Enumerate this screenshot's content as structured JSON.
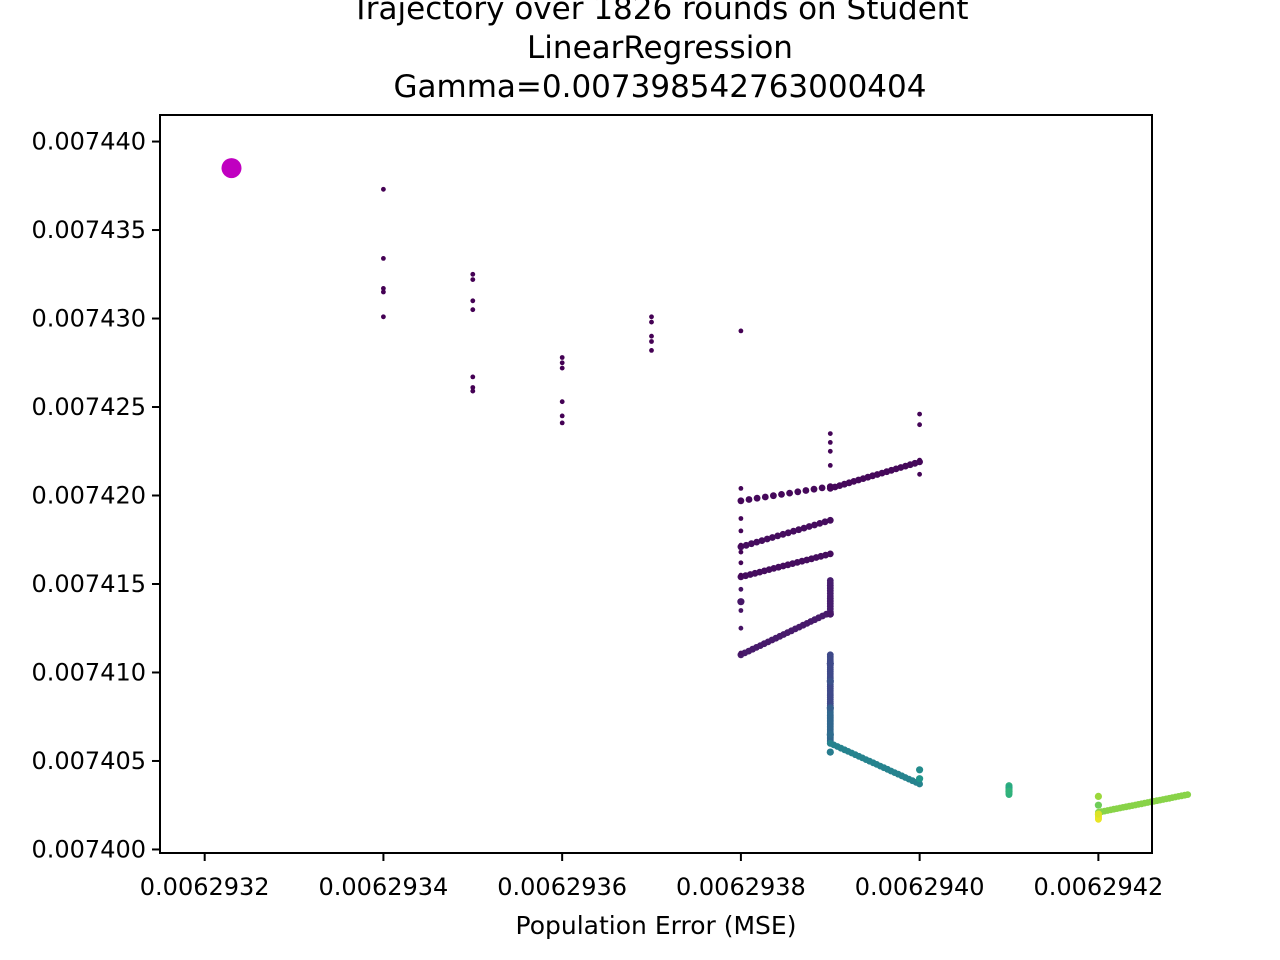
{
  "chart_data": {
    "type": "scatter",
    "title_lines": [
      "Trajectory over 1826 rounds on Student",
      "LinearRegression",
      "Gamma=0.007398542763000404"
    ],
    "xlabel": "Population Error (MSE)",
    "ylabel": "",
    "xlim": [
      0.00629315,
      0.00629426
    ],
    "ylim": [
      0.0073998,
      0.0074415
    ],
    "x_ticks": [
      0.0062932,
      0.0062934,
      0.0062936,
      0.0062938,
      0.006294,
      0.0062942
    ],
    "x_tick_labels": [
      "0.0062932",
      "0.0062934",
      "0.0062936",
      "0.0062938",
      "0.0062940",
      "0.0062942"
    ],
    "y_ticks": [
      0.0074,
      0.007405,
      0.00741,
      0.007415,
      0.00742,
      0.007425,
      0.00743,
      0.007435,
      0.00744
    ],
    "y_tick_labels": [
      "0.007400",
      "0.007405",
      "0.007410",
      "0.007415",
      "0.007420",
      "0.007425",
      "0.007430",
      "0.007435",
      "0.007440"
    ],
    "grid": false,
    "colormap": "viridis",
    "start_point": {
      "x": 0.00629323,
      "y": 0.0074385,
      "color": "#c000c0"
    },
    "points": [
      [
        0.0062934,
        0.0074373,
        0.0
      ],
      [
        0.0062934,
        0.0074334,
        0.0
      ],
      [
        0.0062934,
        0.0074301,
        0.0
      ],
      [
        0.0062934,
        0.0074315,
        0.0
      ],
      [
        0.0062934,
        0.0074317,
        0.0
      ],
      [
        0.0062935,
        0.0074305,
        0.0
      ],
      [
        0.0062935,
        0.0074322,
        0.0
      ],
      [
        0.0062935,
        0.007431,
        0.0
      ],
      [
        0.0062935,
        0.0074325,
        0.0
      ],
      [
        0.0062935,
        0.0074259,
        0.0
      ],
      [
        0.0062935,
        0.0074267,
        0.0
      ],
      [
        0.0062935,
        0.0074261,
        0.0
      ],
      [
        0.0062936,
        0.0074253,
        0.0
      ],
      [
        0.0062936,
        0.0074245,
        0.0
      ],
      [
        0.0062936,
        0.0074272,
        0.0
      ],
      [
        0.0062936,
        0.0074275,
        0.0
      ],
      [
        0.0062936,
        0.0074241,
        0.0
      ],
      [
        0.0062936,
        0.0074278,
        0.0
      ],
      [
        0.0062937,
        0.0074298,
        0.0
      ],
      [
        0.0062937,
        0.0074282,
        0.0
      ],
      [
        0.0062937,
        0.0074301,
        0.0
      ],
      [
        0.0062937,
        0.0074287,
        0.0
      ],
      [
        0.0062937,
        0.007429,
        0.0
      ],
      [
        0.0062938,
        0.0074293,
        0.0
      ],
      [
        0.0062938,
        0.0074155,
        0.01
      ],
      [
        0.0062938,
        0.0074162,
        0.01
      ],
      [
        0.0062938,
        0.0074172,
        0.01
      ],
      [
        0.0062938,
        0.007418,
        0.01
      ],
      [
        0.0062938,
        0.0074197,
        0.01
      ],
      [
        0.0062938,
        0.0074204,
        0.01
      ],
      [
        0.0062938,
        0.0074168,
        0.01
      ],
      [
        0.0062938,
        0.0074187,
        0.01
      ],
      [
        0.0062939,
        0.0074205,
        0.01
      ],
      [
        0.0062939,
        0.0074217,
        0.01
      ],
      [
        0.0062939,
        0.0074225,
        0.01
      ],
      [
        0.0062939,
        0.007423,
        0.01
      ],
      [
        0.0062939,
        0.0074235,
        0.01
      ],
      [
        0.006294,
        0.007424,
        0.01
      ],
      [
        0.006294,
        0.0074246,
        0.01
      ],
      [
        0.006294,
        0.007422,
        0.01
      ],
      [
        0.006294,
        0.0074212,
        0.01
      ],
      [
        0.0062938,
        0.0074111,
        0.05
      ],
      [
        0.0062938,
        0.0074125,
        0.05
      ],
      [
        0.0062938,
        0.0074135,
        0.05
      ],
      [
        0.0062938,
        0.0074147,
        0.05
      ],
      [
        0.0062938,
        0.007414,
        0.06
      ],
      [
        0.0062939,
        0.0074133,
        0.06
      ],
      [
        0.0062939,
        0.0074105,
        0.22
      ],
      [
        0.0062939,
        0.0074095,
        0.25
      ],
      [
        0.0062939,
        0.007408,
        0.3
      ],
      [
        0.0062939,
        0.0074065,
        0.35
      ],
      [
        0.0062939,
        0.0074055,
        0.42
      ],
      [
        0.006294,
        0.0074045,
        0.48
      ],
      [
        0.006294,
        0.007404,
        0.52
      ],
      [
        0.0062941,
        0.0074035,
        0.6
      ],
      [
        0.0062941,
        0.0074033,
        0.65
      ],
      [
        0.0062942,
        0.0074025,
        0.78
      ],
      [
        0.0062942,
        0.007403,
        0.85
      ],
      [
        0.0062942,
        0.007402,
        0.95
      ]
    ],
    "segments": [
      {
        "x0": 0.0062938,
        "y0": 0.0074154,
        "x1": 0.0062939,
        "y1": 0.0074167,
        "c": 0.03,
        "n": 20
      },
      {
        "x0": 0.0062938,
        "y0": 0.0074171,
        "x1": 0.0062939,
        "y1": 0.0074186,
        "c": 0.03,
        "n": 18
      },
      {
        "x0": 0.0062938,
        "y0": 0.0074197,
        "x1": 0.0062939,
        "y1": 0.0074205,
        "c": 0.02,
        "n": 12
      },
      {
        "x0": 0.0062939,
        "y0": 0.0074204,
        "x1": 0.006294,
        "y1": 0.0074219,
        "c": 0.02,
        "n": 20
      },
      {
        "x0": 0.0062938,
        "y0": 0.007411,
        "x1": 0.0062939,
        "y1": 0.0074134,
        "c": 0.07,
        "n": 24
      },
      {
        "x0": 0.0062939,
        "y0": 0.0074133,
        "x1": 0.0062939,
        "y1": 0.0074152,
        "c": 0.08,
        "n": 14
      },
      {
        "x0": 0.0062939,
        "y0": 0.007411,
        "x1": 0.0062939,
        "y1": 0.007408,
        "c": 0.22,
        "n": 26
      },
      {
        "x0": 0.0062939,
        "y0": 0.007408,
        "x1": 0.0062939,
        "y1": 0.007406,
        "c": 0.33,
        "n": 24
      },
      {
        "x0": 0.0062939,
        "y0": 0.007406,
        "x1": 0.006294,
        "y1": 0.0074037,
        "c": 0.45,
        "n": 26
      },
      {
        "x0": 0.0062941,
        "y0": 0.0074034,
        "x1": 0.0062941,
        "y1": 0.0074036,
        "c": 0.58,
        "n": 6
      },
      {
        "x0": 0.0062941,
        "y0": 0.0074031,
        "x1": 0.0062941,
        "y1": 0.0074036,
        "c": 0.64,
        "n": 12
      },
      {
        "x0": 0.0062942,
        "y0": 0.0074021,
        "x1": 0.0062943,
        "y1": 0.0074031,
        "c": 0.82,
        "n": 30
      },
      {
        "x0": 0.0062942,
        "y0": 0.0074017,
        "x1": 0.0062942,
        "y1": 0.007402,
        "c": 0.97,
        "n": 12
      }
    ]
  }
}
